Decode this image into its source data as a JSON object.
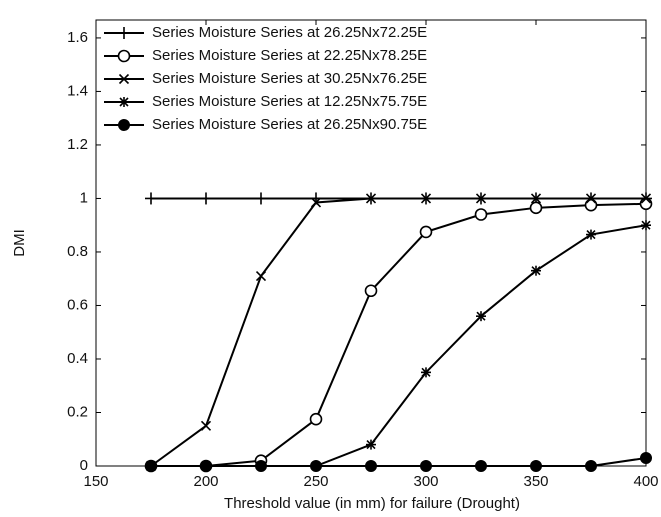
{
  "chart_data": {
    "type": "line",
    "x_label": "Threshold value (in mm) for failure (Drought)",
    "y_label": "DMI",
    "x": [
      175,
      200,
      225,
      250,
      275,
      300,
      325,
      350,
      375,
      400
    ],
    "series": [
      {
        "name": "Series Moisture Series at 26.25Nx72.25E",
        "color": "#000000",
        "marker": "plus",
        "values": [
          1,
          1,
          1,
          1,
          1,
          1,
          1,
          1,
          1,
          1
        ]
      },
      {
        "name": "Series Moisture Series at 22.25Nx78.25E",
        "color": "#000000",
        "marker": "circle",
        "values": [
          0,
          0,
          0.02,
          0.175,
          0.655,
          0.875,
          0.94,
          0.965,
          0.975,
          0.98
        ]
      },
      {
        "name": "Series Moisture Series at 30.25Nx76.25E",
        "color": "#000000",
        "marker": "cross",
        "values": [
          0,
          0.15,
          0.71,
          0.985,
          1,
          1,
          1,
          1,
          1,
          1
        ]
      },
      {
        "name": "Series Moisture Series at 12.25Nx75.75E",
        "color": "#000000",
        "marker": "star",
        "values": [
          0,
          0,
          0,
          0,
          0.08,
          0.35,
          0.56,
          0.73,
          0.865,
          0.9
        ]
      },
      {
        "name": "Series Moisture Series at 26.25Nx90.75E",
        "color": "#000000",
        "marker": "filled-circle",
        "values": [
          0,
          0,
          0,
          0,
          0,
          0,
          0,
          0,
          0,
          0.03
        ]
      }
    ],
    "xlim": [
      150,
      400
    ],
    "xticks": [
      150,
      200,
      250,
      300,
      350,
      400
    ],
    "ylim": [
      0,
      1.667
    ],
    "yticks": [
      0,
      0.2,
      0.4,
      0.6,
      0.8,
      1,
      1.2,
      1.4,
      1.6
    ],
    "legend": "upper left",
    "grid": false
  }
}
